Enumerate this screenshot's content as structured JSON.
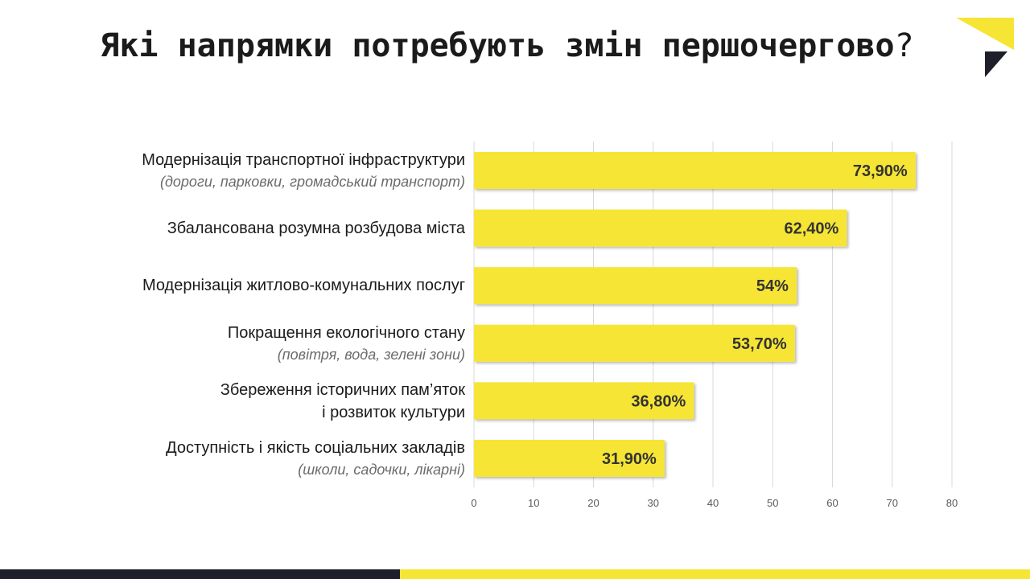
{
  "slide": {
    "title_main": "Які напрямки потребують змін першочергово",
    "title_q": "?",
    "colors": {
      "bar": "#f6e534",
      "dark": "#1f1f2b",
      "grid": "#d9d9d9",
      "text": "#1a1a1a",
      "sub": "#6b6b6b"
    }
  },
  "chart_data": {
    "type": "bar",
    "orientation": "horizontal",
    "categories": [
      {
        "line1": "Модернізація транспортної інфраструктури",
        "line2": "(дороги, парковки, громадський транспорт)",
        "line2_style": "italic"
      },
      {
        "line1": "Збалансована розумна розбудова міста",
        "line2": "",
        "line2_style": ""
      },
      {
        "line1": "Модернізація житлово-комунальних послуг",
        "line2": "",
        "line2_style": ""
      },
      {
        "line1": "Покращення екологічного стану",
        "line2": "(повітря, вода, зелені зони)",
        "line2_style": "italic"
      },
      {
        "line1": "Збереження історичних пам’яток",
        "line2": "і розвиток культури",
        "line2_style": "normal"
      },
      {
        "line1": "Доступність і якість соціальних закладів",
        "line2": "(школи, садочки, лікарні)",
        "line2_style": "italic"
      }
    ],
    "values": [
      73.9,
      62.4,
      54,
      53.7,
      36.8,
      31.9
    ],
    "value_labels": [
      "73,90%",
      "62,40%",
      "54%",
      "53,70%",
      "36,80%",
      "31,90%"
    ],
    "xlim": [
      0,
      80
    ],
    "xticks": [
      "0",
      "10",
      "20",
      "30",
      "40",
      "50",
      "60",
      "70",
      "80"
    ],
    "grid": true,
    "legend": "none"
  }
}
